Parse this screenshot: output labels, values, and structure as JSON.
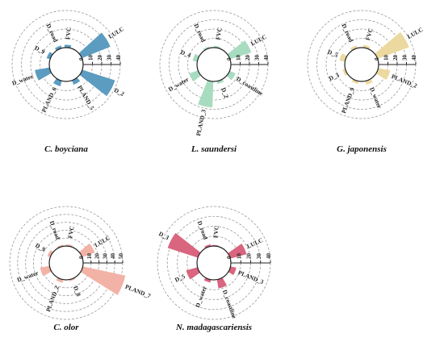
{
  "chart_data": [
    {
      "type": "radial_bar",
      "species": "C. boyciana",
      "color": "#5b9cc0",
      "ticks": [
        0,
        10,
        20,
        30,
        40
      ],
      "variables": [
        {
          "name": "FVC",
          "value": 3,
          "angle": 5
        },
        {
          "name": "LULC",
          "value": 33,
          "angle": 58
        },
        {
          "name": "D_2",
          "value": 37,
          "angle": 118
        },
        {
          "name": "PLAND_5",
          "value": 5,
          "angle": 150
        },
        {
          "name": "PLAND_6",
          "value": 6,
          "angle": 205
        },
        {
          "name": "D_water",
          "value": 16,
          "angle": 250
        },
        {
          "name": "D_9",
          "value": 4,
          "angle": 298
        },
        {
          "name": "D_road",
          "value": 3,
          "angle": 335
        }
      ]
    },
    {
      "type": "radial_bar",
      "species": "L. saundersi",
      "color": "#a8dcc0",
      "ticks": [
        0,
        10,
        20,
        30,
        40
      ],
      "variables": [
        {
          "name": "FVC",
          "value": 2,
          "angle": 10
        },
        {
          "name": "LULC",
          "value": 24,
          "angle": 62
        },
        {
          "name": "D_coastline",
          "value": 7,
          "angle": 122
        },
        {
          "name": "D_2",
          "value": 3,
          "angle": 160
        },
        {
          "name": "PLAND_3",
          "value": 28,
          "angle": 192
        },
        {
          "name": "D_water",
          "value": 10,
          "angle": 240
        },
        {
          "name": "D_4",
          "value": 5,
          "angle": 290
        },
        {
          "name": "D_road",
          "value": 2,
          "angle": 335
        }
      ]
    },
    {
      "type": "radial_bar",
      "species": "G. japonensis",
      "color": "#ecd9a0",
      "ticks": [
        0,
        10,
        20,
        30,
        40
      ],
      "variables": [
        {
          "name": "FVC",
          "value": 3,
          "angle": 15
        },
        {
          "name": "LULC",
          "value": 36,
          "angle": 60
        },
        {
          "name": "PLAND_2",
          "value": 13,
          "angle": 112
        },
        {
          "name": "D_water",
          "value": 4,
          "angle": 158
        },
        {
          "name": "PLAND_9",
          "value": 3,
          "angle": 200
        },
        {
          "name": "D_3",
          "value": 3,
          "angle": 245
        },
        {
          "name": "D_5",
          "value": 6,
          "angle": 290
        },
        {
          "name": "D_road",
          "value": 3,
          "angle": 335
        }
      ]
    },
    {
      "type": "radial_bar",
      "species": "C. olor",
      "color": "#f2b2a6",
      "ticks": [
        0,
        10,
        20,
        30,
        40,
        50
      ],
      "variables": [
        {
          "name": "FVC",
          "value": 2,
          "angle": 10
        },
        {
          "name": "LULC",
          "value": 17,
          "angle": 60
        },
        {
          "name": "PLAND_7",
          "value": 55,
          "angle": 112
        },
        {
          "name": "D_8",
          "value": 2,
          "angle": 160
        },
        {
          "name": "PLAND_2",
          "value": 4,
          "angle": 200
        },
        {
          "name": "D_water",
          "value": 12,
          "angle": 250
        },
        {
          "name": "D_9",
          "value": 4,
          "angle": 300
        },
        {
          "name": "D_road",
          "value": 2,
          "angle": 340
        }
      ]
    },
    {
      "type": "radial_bar",
      "species": "N. madagascariensis",
      "color": "#d9657e",
      "ticks": [
        0,
        10,
        20,
        30,
        40
      ],
      "variables": [
        {
          "name": "FVC",
          "value": 1,
          "angle": 5
        },
        {
          "name": "LULC",
          "value": 17,
          "angle": 65
        },
        {
          "name": "PLAND_3",
          "value": 6,
          "angle": 112
        },
        {
          "name": "D_coastline",
          "value": 9,
          "angle": 160
        },
        {
          "name": "D_water",
          "value": 3,
          "angle": 200
        },
        {
          "name": "D_5",
          "value": 12,
          "angle": 245
        },
        {
          "name": "D_3",
          "value": 32,
          "angle": 298
        },
        {
          "name": "D_road",
          "value": 2,
          "angle": 340
        }
      ]
    }
  ]
}
